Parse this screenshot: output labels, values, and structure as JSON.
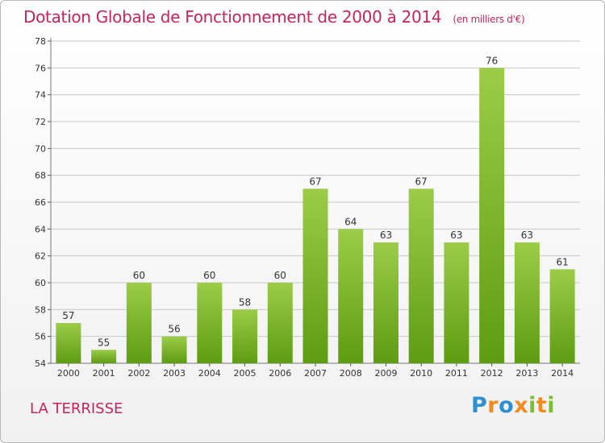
{
  "chart_data": {
    "type": "bar",
    "title": "Dotation Globale de Fonctionnement de 2000 à 2014",
    "unit_note": "(en milliers d'€)",
    "categories": [
      "2000",
      "2001",
      "2002",
      "2003",
      "2004",
      "2005",
      "2006",
      "2007",
      "2008",
      "2009",
      "2010",
      "2011",
      "2012",
      "2013",
      "2014"
    ],
    "values": [
      57,
      55,
      60,
      56,
      60,
      58,
      60,
      67,
      64,
      63,
      67,
      63,
      76,
      63,
      61
    ],
    "ylim": [
      54,
      78
    ],
    "yticks": [
      54,
      56,
      58,
      60,
      62,
      64,
      66,
      68,
      70,
      72,
      74,
      76,
      78
    ],
    "grid": true,
    "bar_color_top": "#9ccc48",
    "bar_color_bottom": "#5e9c12",
    "grid_color": "#c8c8c8"
  },
  "commune": "LA TERRISSE",
  "logo": {
    "text": "Proxiti",
    "letters": [
      {
        "ch": "P",
        "color": "#2e90d0"
      },
      {
        "ch": "r",
        "color": "#f28b1e"
      },
      {
        "ch": "o",
        "color": "#2e90d0"
      },
      {
        "ch": "x",
        "color": "#f28b1e"
      },
      {
        "ch": "i",
        "color": "#7cbf2e"
      },
      {
        "ch": "t",
        "color": "#f28b1e"
      },
      {
        "ch": "i",
        "color": "#7cbf2e"
      }
    ]
  }
}
